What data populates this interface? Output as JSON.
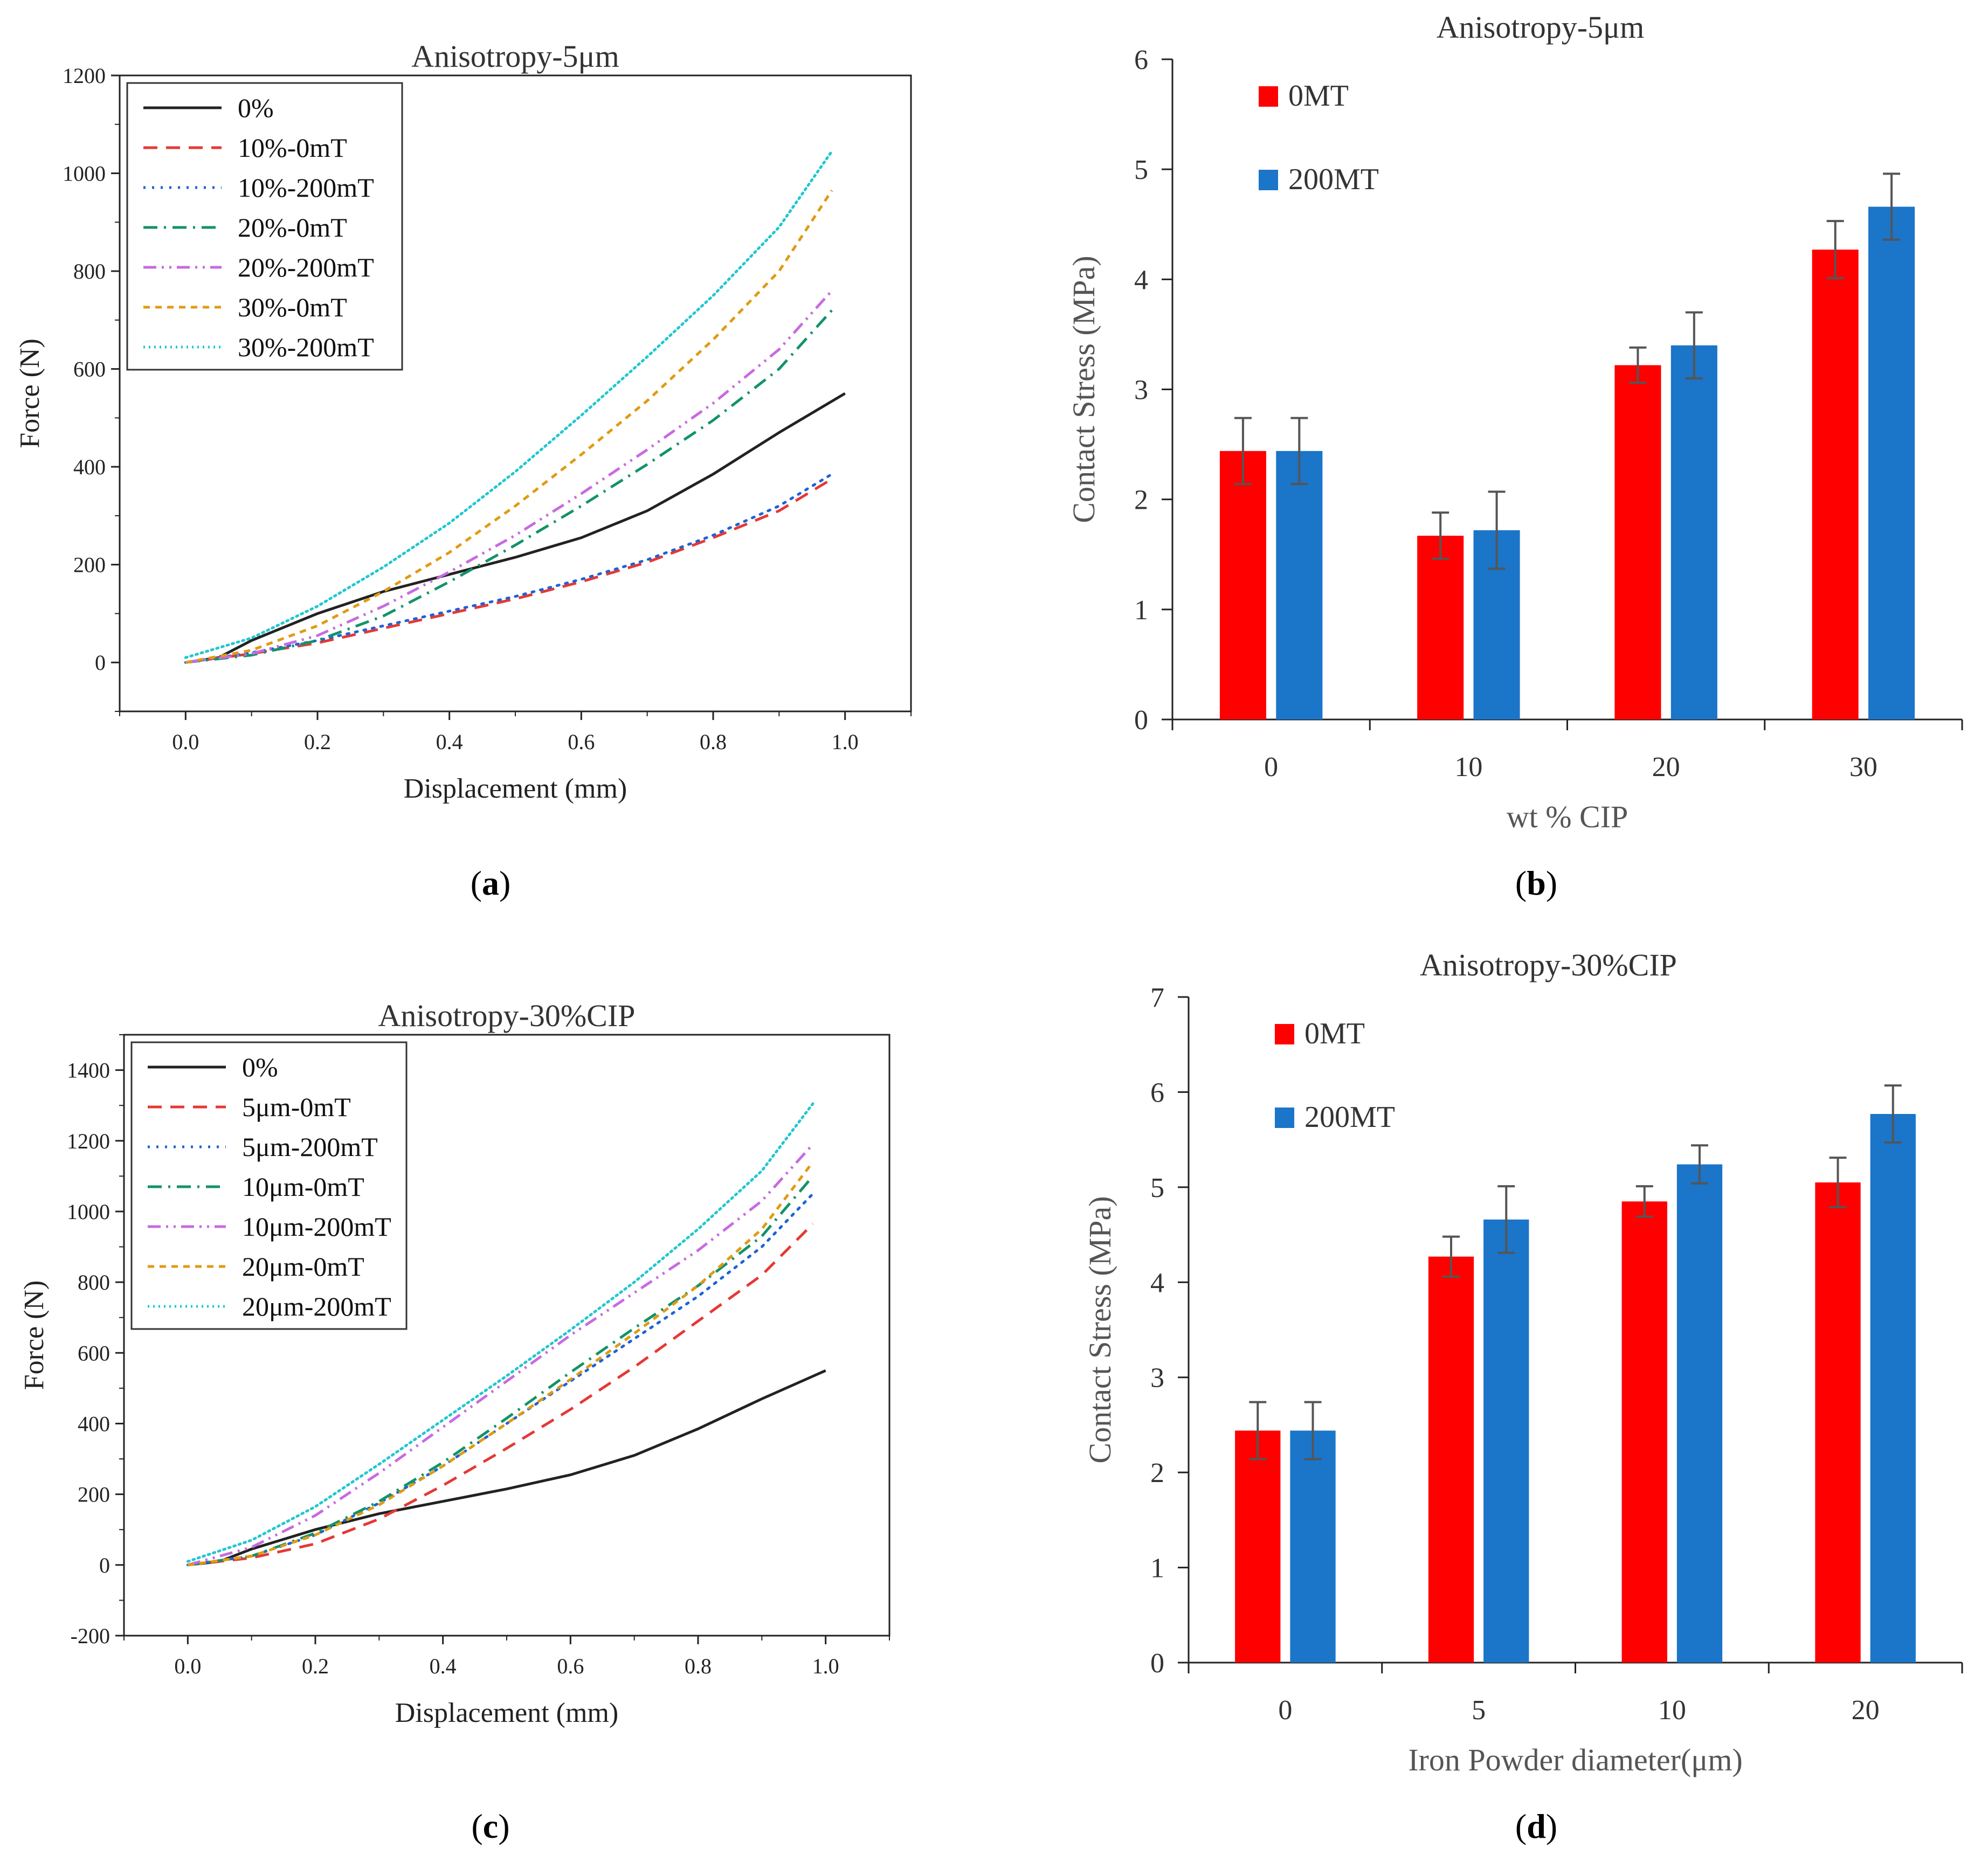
{
  "chart_data": [
    {
      "id": "a",
      "type": "line",
      "title": "Anisotropy-5μm",
      "xlabel": "Displacement (mm)",
      "ylabel": "Force (N)",
      "caption": "a",
      "xlim": [
        -0.1,
        1.1
      ],
      "ylim": [
        -100,
        1200
      ],
      "xticks": [
        "0.0",
        "0.2",
        "0.4",
        "0.6",
        "0.8",
        "1.0"
      ],
      "yticks": [
        "0",
        "200",
        "400",
        "600",
        "800",
        "1000",
        "1200"
      ],
      "legend_position": "top-left",
      "series": [
        {
          "name": "0%",
          "color": "#222222",
          "dash": "solid",
          "x": [
            0,
            0.05,
            0.1,
            0.2,
            0.3,
            0.4,
            0.5,
            0.6,
            0.7,
            0.8,
            0.9,
            1.0
          ],
          "y": [
            0,
            10,
            45,
            100,
            145,
            180,
            215,
            255,
            310,
            385,
            470,
            550
          ]
        },
        {
          "name": "10%-0mT",
          "color": "#e53935",
          "dash": "long",
          "x": [
            0,
            0.1,
            0.2,
            0.3,
            0.4,
            0.5,
            0.6,
            0.7,
            0.8,
            0.9,
            0.98
          ],
          "y": [
            0,
            18,
            40,
            70,
            100,
            130,
            165,
            205,
            255,
            310,
            375
          ]
        },
        {
          "name": "10%-200mT",
          "color": "#1e63d6",
          "dash": "dot",
          "x": [
            0,
            0.1,
            0.2,
            0.3,
            0.4,
            0.5,
            0.6,
            0.7,
            0.8,
            0.9,
            0.98
          ],
          "y": [
            0,
            20,
            45,
            75,
            105,
            135,
            170,
            210,
            260,
            320,
            385
          ]
        },
        {
          "name": "20%-0mT",
          "color": "#12936a",
          "dash": "dashdot",
          "x": [
            0,
            0.1,
            0.2,
            0.3,
            0.4,
            0.5,
            0.6,
            0.7,
            0.8,
            0.9,
            0.98
          ],
          "y": [
            0,
            15,
            45,
            95,
            165,
            240,
            320,
            405,
            495,
            600,
            720
          ]
        },
        {
          "name": "20%-200mT",
          "color": "#c76be0",
          "dash": "dashdotdot",
          "x": [
            0,
            0.1,
            0.2,
            0.3,
            0.4,
            0.5,
            0.6,
            0.7,
            0.8,
            0.9,
            0.98
          ],
          "y": [
            0,
            18,
            55,
            115,
            185,
            260,
            345,
            435,
            530,
            640,
            760
          ]
        },
        {
          "name": "30%-0mT",
          "color": "#e09b12",
          "dash": "short",
          "x": [
            0,
            0.1,
            0.2,
            0.3,
            0.4,
            0.5,
            0.6,
            0.7,
            0.8,
            0.9,
            0.98
          ],
          "y": [
            0,
            25,
            75,
            145,
            225,
            320,
            425,
            535,
            660,
            800,
            965
          ]
        },
        {
          "name": "30%-200mT",
          "color": "#22c7cf",
          "dash": "dense",
          "x": [
            0,
            0.1,
            0.2,
            0.3,
            0.4,
            0.5,
            0.6,
            0.7,
            0.8,
            0.9,
            0.98
          ],
          "y": [
            10,
            50,
            115,
            195,
            285,
            390,
            505,
            625,
            750,
            890,
            1045
          ]
        }
      ]
    },
    {
      "id": "b",
      "type": "bar",
      "title": "Anisotropy-5μm",
      "xlabel": "wt % CIP",
      "ylabel": "Contact Stress (MPa)",
      "caption": "b",
      "categories": [
        "0",
        "10",
        "20",
        "30"
      ],
      "ylim": [
        0,
        6
      ],
      "yticks": [
        "0",
        "1",
        "2",
        "3",
        "4",
        "5",
        "6"
      ],
      "legend_position": "top-left",
      "series": [
        {
          "name": "0MT",
          "color": "#ff0000",
          "values": [
            2.44,
            1.67,
            3.22,
            4.27
          ],
          "errors": [
            0.3,
            0.21,
            0.16,
            0.26
          ]
        },
        {
          "name": "200MT",
          "color": "#1b75c9",
          "values": [
            2.44,
            1.72,
            3.4,
            4.66
          ],
          "errors": [
            0.3,
            0.35,
            0.3,
            0.3
          ]
        }
      ]
    },
    {
      "id": "c",
      "type": "line",
      "title": "Anisotropy-30%CIP",
      "xlabel": "Displacement (mm)",
      "ylabel": "Force (N)",
      "caption": "c",
      "xlim": [
        -0.1,
        1.1
      ],
      "ylim": [
        -200,
        1500
      ],
      "xticks": [
        "0.0",
        "0.2",
        "0.4",
        "0.6",
        "0.8",
        "1.0"
      ],
      "yticks": [
        "-200",
        "0",
        "200",
        "400",
        "600",
        "800",
        "1000",
        "1200",
        "1400"
      ],
      "legend_position": "top-left",
      "series": [
        {
          "name": "0%",
          "color": "#222222",
          "dash": "solid",
          "x": [
            0,
            0.05,
            0.1,
            0.2,
            0.3,
            0.4,
            0.5,
            0.6,
            0.7,
            0.8,
            0.9,
            1.0
          ],
          "y": [
            0,
            10,
            45,
            100,
            145,
            180,
            215,
            255,
            310,
            385,
            470,
            550
          ]
        },
        {
          "name": "5μm-0mT",
          "color": "#e53935",
          "dash": "long",
          "x": [
            0,
            0.1,
            0.2,
            0.3,
            0.4,
            0.5,
            0.6,
            0.7,
            0.8,
            0.9,
            0.98
          ],
          "y": [
            0,
            20,
            60,
            130,
            225,
            330,
            440,
            560,
            690,
            820,
            965
          ]
        },
        {
          "name": "5μm-200mT",
          "color": "#1e63d6",
          "dash": "dot",
          "x": [
            0,
            0.1,
            0.2,
            0.3,
            0.4,
            0.5,
            0.6,
            0.7,
            0.8,
            0.9,
            0.98
          ],
          "y": [
            0,
            25,
            85,
            175,
            280,
            400,
            520,
            640,
            760,
            900,
            1050
          ]
        },
        {
          "name": "10μm-0mT",
          "color": "#12936a",
          "dash": "dashdot",
          "x": [
            0,
            0.1,
            0.2,
            0.3,
            0.4,
            0.5,
            0.6,
            0.7,
            0.8,
            0.9,
            0.98
          ],
          "y": [
            0,
            25,
            90,
            180,
            290,
            415,
            545,
            670,
            790,
            930,
            1100
          ]
        },
        {
          "name": "10μm-200mT",
          "color": "#c76be0",
          "dash": "dashdotdot",
          "x": [
            0,
            0.1,
            0.2,
            0.3,
            0.4,
            0.5,
            0.6,
            0.7,
            0.8,
            0.9,
            0.98
          ],
          "y": [
            0,
            50,
            140,
            260,
            390,
            520,
            650,
            770,
            890,
            1030,
            1190
          ]
        },
        {
          "name": "20μm-0mT",
          "color": "#e09b12",
          "dash": "short",
          "x": [
            0,
            0.1,
            0.2,
            0.3,
            0.4,
            0.5,
            0.6,
            0.7,
            0.8,
            0.9,
            0.98
          ],
          "y": [
            0,
            25,
            85,
            170,
            280,
            400,
            525,
            655,
            790,
            950,
            1140
          ]
        },
        {
          "name": "20μm-200mT",
          "color": "#22c7cf",
          "dash": "dense",
          "x": [
            0,
            0.1,
            0.2,
            0.3,
            0.4,
            0.5,
            0.6,
            0.7,
            0.8,
            0.9,
            0.98
          ],
          "y": [
            10,
            70,
            165,
            285,
            410,
            535,
            665,
            800,
            950,
            1115,
            1305
          ]
        }
      ]
    },
    {
      "id": "d",
      "type": "bar",
      "title": "Anisotropy-30%CIP",
      "xlabel": "Iron Powder diameter(μm)",
      "ylabel": "Contact Stress (MPa)",
      "caption": "d",
      "categories": [
        "0",
        "5",
        "10",
        "20"
      ],
      "ylim": [
        0,
        7
      ],
      "yticks": [
        "0",
        "1",
        "2",
        "3",
        "4",
        "5",
        "6",
        "7"
      ],
      "legend_position": "top-left",
      "series": [
        {
          "name": "0MT",
          "color": "#ff0000",
          "values": [
            2.44,
            4.27,
            4.85,
            5.05
          ],
          "errors": [
            0.3,
            0.21,
            0.16,
            0.26
          ]
        },
        {
          "name": "200MT",
          "color": "#1b75c9",
          "values": [
            2.44,
            4.66,
            5.24,
            5.77
          ],
          "errors": [
            0.3,
            0.35,
            0.2,
            0.3
          ]
        }
      ]
    }
  ]
}
